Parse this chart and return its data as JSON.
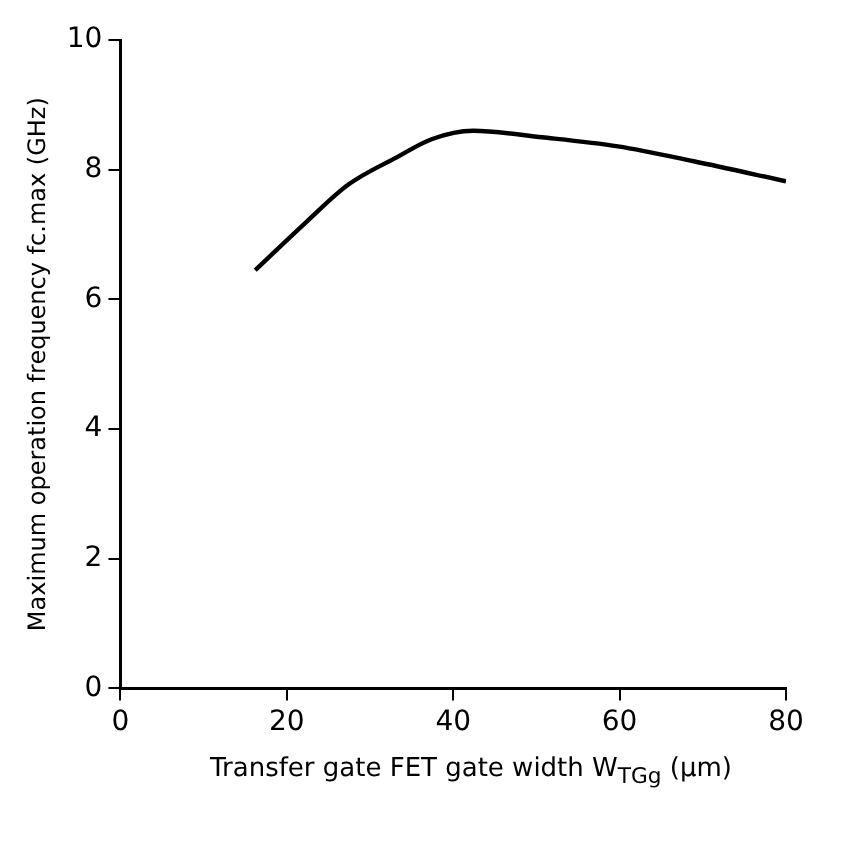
{
  "chart_data": {
    "type": "line",
    "xlabel": "Transfer gate FET gate width W$_{TGg}$ (μm)",
    "ylabel": "Maximum operation frequency fc.max (GHz)",
    "series": [
      {
        "color": "#000000",
        "x": [
          16.2,
          22.4,
          27.4,
          33.2,
          37.4,
          42.4,
          50.7,
          59.8,
          68.9,
          80
        ],
        "values": [
          6.45,
          7.2,
          7.77,
          8.19,
          8.47,
          8.6,
          8.5,
          8.36,
          8.13,
          7.82
        ]
      }
    ],
    "xlim": [
      0,
      80
    ],
    "xticks": [
      0,
      20,
      40,
      60,
      80
    ],
    "ylim": [
      0,
      10
    ],
    "yticks": [
      0,
      2,
      4,
      6,
      8,
      10
    ],
    "grid": false,
    "legend": false,
    "marker": "none",
    "line_style": "solid"
  }
}
